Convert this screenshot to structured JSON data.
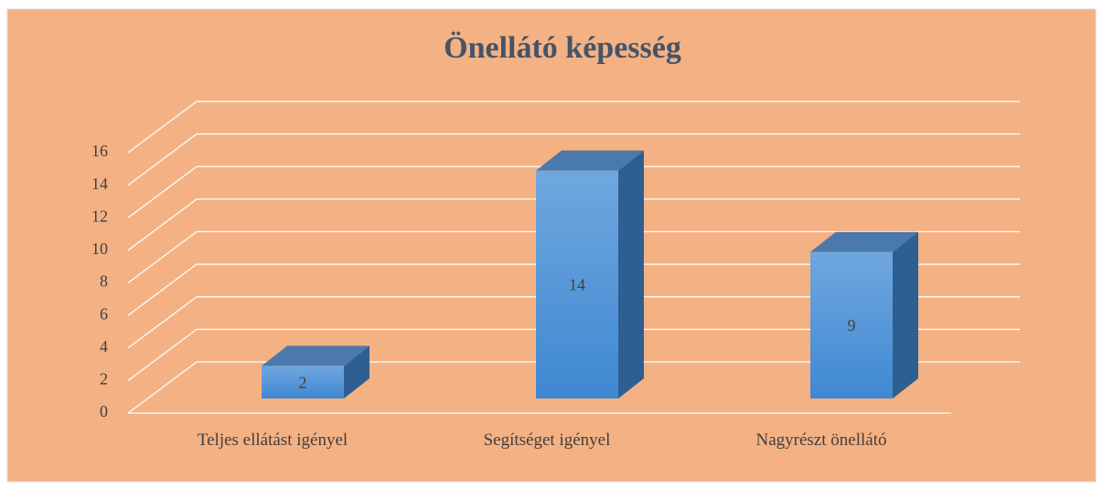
{
  "chart_data": {
    "type": "bar3d",
    "title": "Önellátó képesség",
    "categories": [
      "Teljes ellátást igényel",
      "Segítséget igényel",
      "Nagyrészt önellátó"
    ],
    "values": [
      2,
      14,
      9
    ],
    "ylim": [
      0,
      16
    ],
    "yticks": [
      0,
      2,
      4,
      6,
      8,
      10,
      12,
      14,
      16
    ],
    "grid": true,
    "color": "#4a90d9"
  }
}
